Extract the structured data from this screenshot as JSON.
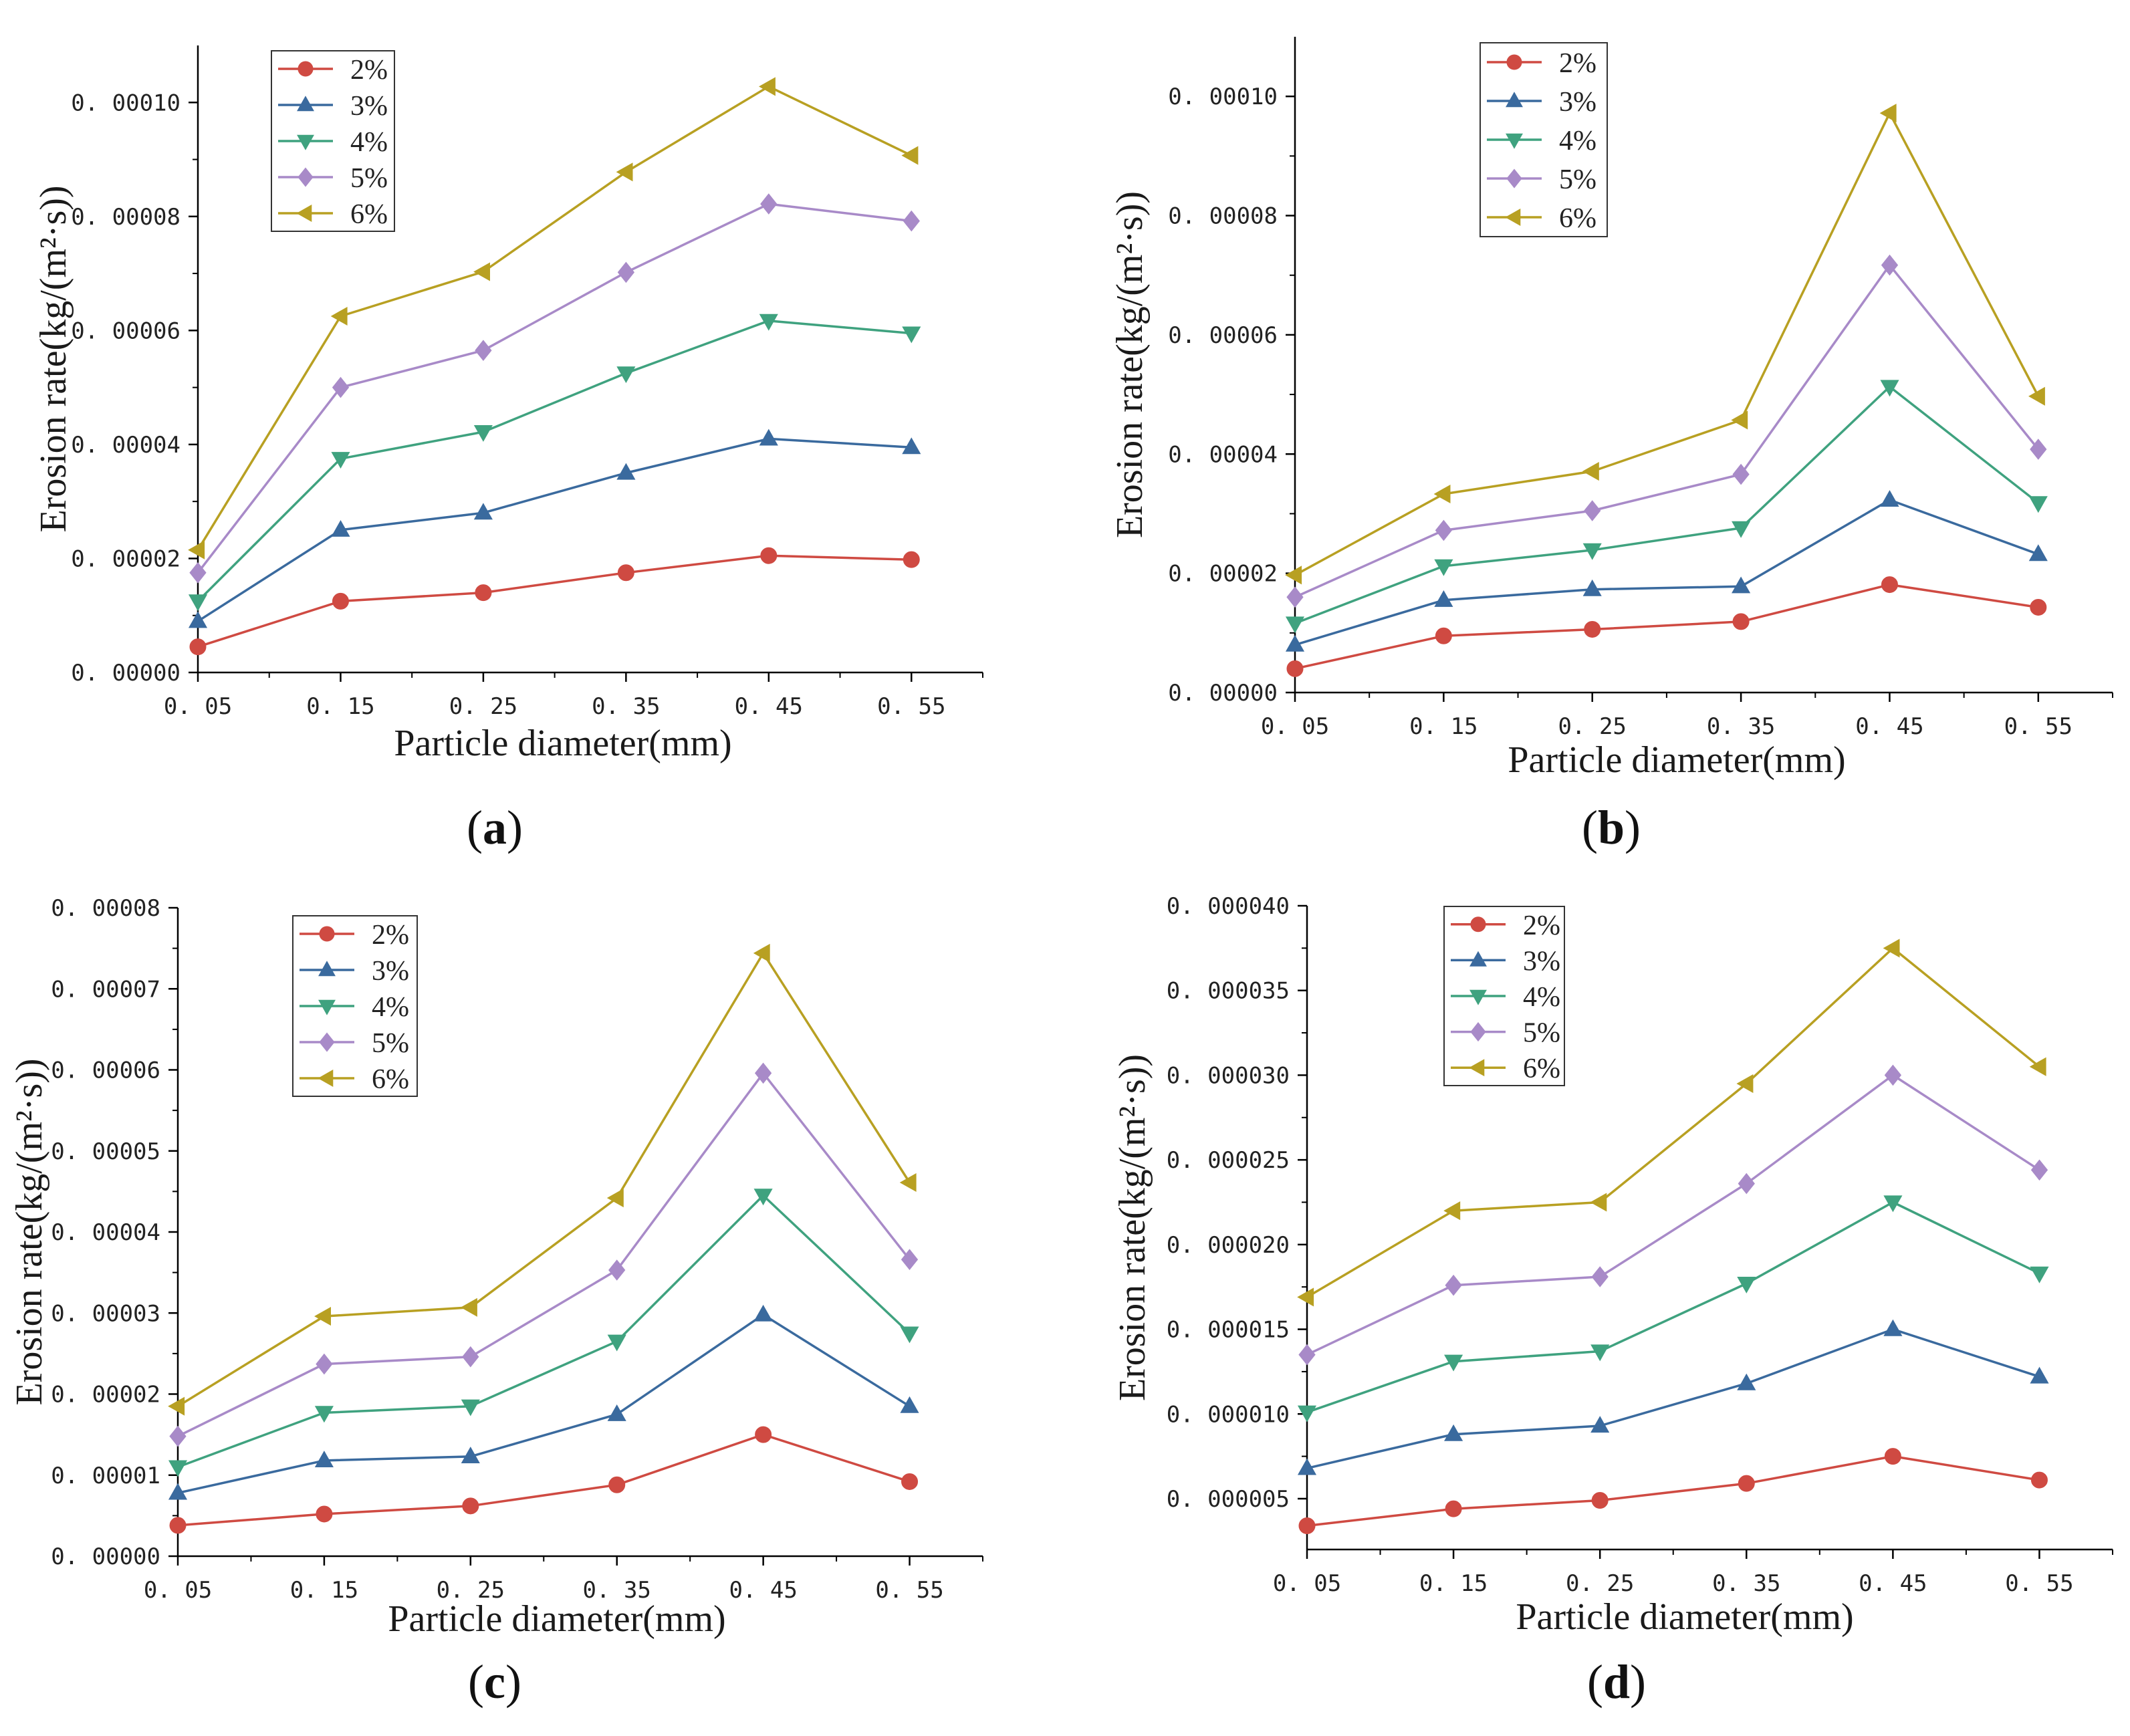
{
  "figure": {
    "series_style": {
      "2%": {
        "color": "#cf4a42",
        "marker": "circle"
      },
      "3%": {
        "color": "#3a6a9e",
        "marker": "triangle-up"
      },
      "4%": {
        "color": "#3fa27f",
        "marker": "triangle-down"
      },
      "5%": {
        "color": "#a88ac8",
        "marker": "diamond"
      },
      "6%": {
        "color": "#b8a022",
        "marker": "triangle-left"
      }
    }
  },
  "chart_data": [
    {
      "panel": "a",
      "caption_letter": "a",
      "type": "line",
      "xlabel": "Particle diameter(mm)",
      "ylabel": "Erosion rate(kg/(m²·s))",
      "x": [
        0.05,
        0.15,
        0.25,
        0.35,
        0.45,
        0.55
      ],
      "x_tick_labels": [
        "0. 05",
        "0. 15",
        "0. 25",
        "0. 35",
        "0. 45",
        "0. 55"
      ],
      "xlim": [
        0.05,
        0.6
      ],
      "ylim": [
        0,
        0.00011
      ],
      "y_ticks": [
        0,
        2e-05,
        4e-05,
        6e-05,
        8e-05,
        0.0001
      ],
      "y_tick_labels": [
        "0. 00000",
        "0. 00002",
        "0. 00004",
        "0. 00006",
        "0. 00008",
        "0. 00010"
      ],
      "legend_position": "top-left",
      "series": [
        {
          "name": "2%",
          "values": [
            4.5e-06,
            1.25e-05,
            1.4e-05,
            1.75e-05,
            2.05e-05,
            1.98e-05
          ]
        },
        {
          "name": "3%",
          "values": [
            9e-06,
            2.5e-05,
            2.8e-05,
            3.5e-05,
            4.1e-05,
            3.95e-05
          ]
        },
        {
          "name": "4%",
          "values": [
            1.25e-05,
            3.75e-05,
            4.22e-05,
            5.25e-05,
            6.17e-05,
            5.95e-05
          ]
        },
        {
          "name": "5%",
          "values": [
            1.75e-05,
            5e-05,
            5.65e-05,
            7.02e-05,
            8.22e-05,
            7.92e-05
          ]
        },
        {
          "name": "6%",
          "values": [
            2.15e-05,
            6.25e-05,
            7.03e-05,
            8.78e-05,
            0.0001028,
            9.07e-05
          ]
        }
      ]
    },
    {
      "panel": "b",
      "caption_letter": "b",
      "type": "line",
      "xlabel": "Particle diameter(mm)",
      "ylabel": "Erosion rate(kg/(m²·s))",
      "x": [
        0.05,
        0.15,
        0.25,
        0.35,
        0.45,
        0.55
      ],
      "x_tick_labels": [
        "0. 05",
        "0. 15",
        "0. 25",
        "0. 35",
        "0. 45",
        "0. 55"
      ],
      "xlim": [
        0.05,
        0.6
      ],
      "ylim": [
        0,
        0.00011
      ],
      "y_ticks": [
        0,
        2e-05,
        4e-05,
        6e-05,
        8e-05,
        0.0001
      ],
      "y_tick_labels": [
        "0. 00000",
        "0. 00002",
        "0. 00004",
        "0. 00006",
        "0. 00008",
        "0. 00010"
      ],
      "legend_position": "top-left",
      "series": [
        {
          "name": "2%",
          "values": [
            4e-06,
            9.5e-06,
            1.06e-05,
            1.19e-05,
            1.81e-05,
            1.43e-05
          ]
        },
        {
          "name": "3%",
          "values": [
            8e-06,
            1.55e-05,
            1.73e-05,
            1.78e-05,
            3.23e-05,
            2.32e-05
          ]
        },
        {
          "name": "4%",
          "values": [
            1.16e-05,
            2.12e-05,
            2.39e-05,
            2.76e-05,
            5.13e-05,
            3.18e-05
          ]
        },
        {
          "name": "5%",
          "values": [
            1.6e-05,
            2.72e-05,
            3.05e-05,
            3.66e-05,
            7.17e-05,
            4.08e-05
          ]
        },
        {
          "name": "6%",
          "values": [
            1.97e-05,
            3.33e-05,
            3.71e-05,
            4.57e-05,
            9.72e-05,
            4.97e-05
          ]
        }
      ]
    },
    {
      "panel": "c",
      "caption_letter": "c",
      "type": "line",
      "xlabel": "Particle diameter(mm)",
      "ylabel": "Erosion rate(kg/(m²·s))",
      "x": [
        0.05,
        0.15,
        0.25,
        0.35,
        0.45,
        0.55
      ],
      "x_tick_labels": [
        "0. 05",
        "0. 15",
        "0. 25",
        "0. 35",
        "0. 45",
        "0. 55"
      ],
      "xlim": [
        0.05,
        0.6
      ],
      "ylim": [
        0,
        8e-05
      ],
      "y_ticks": [
        0,
        1e-05,
        2e-05,
        3e-05,
        4e-05,
        5e-05,
        6e-05,
        7e-05,
        8e-05
      ],
      "y_tick_labels": [
        "0. 00000",
        "0. 00001",
        "0. 00002",
        "0. 00003",
        "0. 00004",
        "0. 00005",
        "0. 00006",
        "0. 00007",
        "0. 00008"
      ],
      "legend_position": "top-left",
      "series": [
        {
          "name": "2%",
          "values": [
            3.8e-06,
            5.2e-06,
            6.2e-06,
            8.8e-06,
            1.5e-05,
            9.2e-06
          ]
        },
        {
          "name": "3%",
          "values": [
            7.8e-06,
            1.18e-05,
            1.23e-05,
            1.75e-05,
            2.98e-05,
            1.85e-05
          ]
        },
        {
          "name": "4%",
          "values": [
            1.1e-05,
            1.77e-05,
            1.85e-05,
            2.65e-05,
            4.45e-05,
            2.75e-05
          ]
        },
        {
          "name": "5%",
          "values": [
            1.48e-05,
            2.37e-05,
            2.46e-05,
            3.53e-05,
            5.96e-05,
            3.66e-05
          ]
        },
        {
          "name": "6%",
          "values": [
            1.85e-05,
            2.96e-05,
            3.07e-05,
            4.42e-05,
            7.44e-05,
            4.61e-05
          ]
        }
      ]
    },
    {
      "panel": "d",
      "caption_letter": "d",
      "type": "line",
      "xlabel": "Particle diameter(mm)",
      "ylabel": "Erosion rate(kg/(m²·s))",
      "x": [
        0.05,
        0.15,
        0.25,
        0.35,
        0.45,
        0.55
      ],
      "x_tick_labels": [
        "0. 05",
        "0. 15",
        "0. 25",
        "0. 35",
        "0. 45",
        "0. 55"
      ],
      "xlim": [
        0.05,
        0.6
      ],
      "ylim": [
        2e-06,
        4e-05
      ],
      "y_ticks": [
        5e-06,
        1e-05,
        1.5e-05,
        2e-05,
        2.5e-05,
        3e-05,
        3.5e-05,
        4e-05
      ],
      "y_tick_labels": [
        "0. 000005",
        "0. 000010",
        "0. 000015",
        "0. 000020",
        "0. 000025",
        "0. 000030",
        "0. 000035",
        "0. 000040"
      ],
      "legend_position": "top-left",
      "series": [
        {
          "name": "2%",
          "values": [
            3.4e-06,
            4.4e-06,
            4.9e-06,
            5.9e-06,
            7.5e-06,
            6.1e-06
          ]
        },
        {
          "name": "3%",
          "values": [
            6.8e-06,
            8.8e-06,
            9.3e-06,
            1.18e-05,
            1.5e-05,
            1.22e-05
          ]
        },
        {
          "name": "4%",
          "values": [
            1.01e-05,
            1.31e-05,
            1.37e-05,
            1.77e-05,
            2.25e-05,
            1.83e-05
          ]
        },
        {
          "name": "5%",
          "values": [
            1.35e-05,
            1.76e-05,
            1.81e-05,
            2.36e-05,
            3e-05,
            2.44e-05
          ]
        },
        {
          "name": "6%",
          "values": [
            1.69e-05,
            2.2e-05,
            2.25e-05,
            2.95e-05,
            3.75e-05,
            3.05e-05
          ]
        }
      ]
    }
  ]
}
